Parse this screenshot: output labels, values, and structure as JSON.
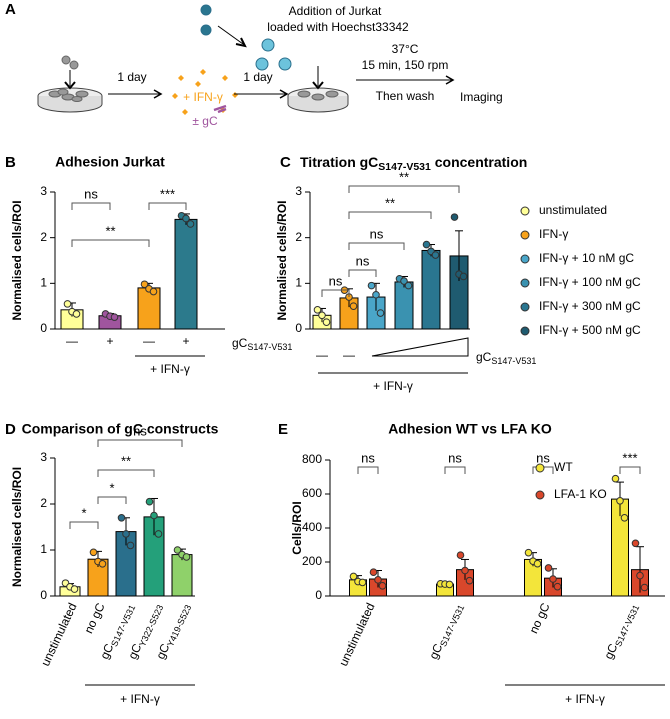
{
  "schematic": {
    "panel": "A",
    "jurkat": "Addition of Jurkat",
    "jurkat2": "loaded with Hoechst33342",
    "day1": "1 day",
    "ifn": "+ IFN-γ",
    "gc": "± gC",
    "day2": "1 day",
    "temp": "37°C",
    "cond": "15 min, 150 rpm",
    "wash": "Then wash",
    "imaging": "Imaging"
  },
  "chart_data": [
    {
      "panel": "B",
      "type": "bar",
      "title": "Adhesion Jurkat",
      "ylabel": "Normalised cells/ROI",
      "categories": [
        "—",
        "+",
        "—",
        "+"
      ],
      "values": [
        0.42,
        0.29,
        0.9,
        2.4
      ],
      "errors": [
        0.15,
        0.05,
        0.1,
        0.12
      ],
      "points": [
        [
          0.55,
          0.38,
          0.33
        ],
        [
          0.33,
          0.28,
          0.26
        ],
        [
          0.98,
          0.88,
          0.82
        ],
        [
          2.48,
          2.42,
          2.3
        ]
      ],
      "colors": [
        "#ffff99",
        "#a0559e",
        "#f7a21b",
        "#2c7a8c"
      ],
      "ylim": [
        0,
        3
      ],
      "yticks": [
        0,
        1,
        2,
        3
      ],
      "xlabel": {
        "main": "gC",
        "sub": "S147-V531"
      },
      "groups": [
        {
          "label": "+ IFN-γ",
          "categories": [
            2,
            3
          ]
        }
      ],
      "annotations": [
        {
          "from": 0,
          "to": 1,
          "label": "ns"
        },
        {
          "from": 2,
          "to": 3,
          "label": "***"
        },
        {
          "from": 0,
          "to": 2,
          "label": "**"
        }
      ]
    },
    {
      "panel": "C",
      "type": "bar",
      "title": {
        "main": "Titration gC",
        "sub": "S147-V531",
        "tail": " concentration"
      },
      "ylabel": "Normalised cells/ROI",
      "categories": [
        "—",
        "—",
        null,
        null,
        null,
        null
      ],
      "values": [
        0.3,
        0.68,
        0.7,
        1.03,
        1.72,
        1.6
      ],
      "errors": [
        0.15,
        0.2,
        0.3,
        0.12,
        0.13,
        0.55
      ],
      "points": [
        [
          0.42,
          0.3,
          0.15
        ],
        [
          0.85,
          0.7,
          0.5
        ],
        [
          0.95,
          0.75,
          0.35
        ],
        [
          1.1,
          1.05,
          0.95
        ],
        [
          1.85,
          1.7,
          1.62
        ],
        [
          2.45,
          1.2,
          1.15
        ]
      ],
      "colors": [
        "#ffff99",
        "#f7a21b",
        "#4aa6c9",
        "#3a92b0",
        "#2a7690",
        "#1f5b70"
      ],
      "names": [
        "unstimulated",
        "IFN-γ",
        "IFN-γ + 10 nM gC",
        "IFN-γ + 100 nM gC",
        "IFN-γ + 300 nM gC",
        "IFN-γ + 500 nM gC"
      ],
      "ylim": [
        0,
        3
      ],
      "yticks": [
        0,
        1,
        2,
        3
      ],
      "xlabel": {
        "main": "gC",
        "sub": "S147-V531"
      },
      "groups": [
        {
          "label": "+ IFN-γ",
          "categories": [
            1,
            5
          ]
        }
      ],
      "annotations": [
        {
          "from": 0,
          "to": 1,
          "label": "ns"
        },
        {
          "from": 1,
          "to": 2,
          "label": "ns"
        },
        {
          "from": 1,
          "to": 3,
          "label": "ns"
        },
        {
          "from": 1,
          "to": 4,
          "label": "**"
        },
        {
          "from": 1,
          "to": 5,
          "label": "**"
        }
      ]
    },
    {
      "panel": "D",
      "type": "bar",
      "title": "Comparison of gC constructs",
      "ylabel": "Normalised cells/ROI",
      "categories": [
        "unstimulated",
        "no gC",
        {
          "main": "gC",
          "sub": "S147-V531"
        },
        {
          "main": "gC",
          "sub": "Y322-S523"
        },
        {
          "main": "gC",
          "sub": "Y419-S523"
        }
      ],
      "values": [
        0.2,
        0.8,
        1.4,
        1.72,
        0.9
      ],
      "errors": [
        0.07,
        0.17,
        0.3,
        0.4,
        0.12
      ],
      "points": [
        [
          0.28,
          0.2,
          0.15
        ],
        [
          0.95,
          0.75,
          0.7
        ],
        [
          1.7,
          1.35,
          1.1
        ],
        [
          2.05,
          1.75,
          1.35
        ],
        [
          1.0,
          0.9,
          0.85
        ]
      ],
      "colors": [
        "#ffff99",
        "#f7a21b",
        "#2a6f8c",
        "#24a07a",
        "#8fd16a"
      ],
      "ylim": [
        0,
        3
      ],
      "yticks": [
        0,
        1,
        2,
        3
      ],
      "groups": [
        {
          "label": "+ IFN-γ",
          "categories": [
            1,
            4
          ]
        }
      ],
      "annotations": [
        {
          "from": 0,
          "to": 1,
          "label": "*"
        },
        {
          "from": 1,
          "to": 2,
          "label": "*"
        },
        {
          "from": 1,
          "to": 3,
          "label": "**"
        },
        {
          "from": 1,
          "to": 4,
          "label": "ns"
        }
      ]
    },
    {
      "panel": "E",
      "type": "grouped-bar",
      "title": "Adhesion WT vs LFA KO",
      "ylabel": "Cells/ROI",
      "categories": [
        "unstimulated",
        {
          "main": "gC",
          "sub": "S147-V531"
        },
        "no gC",
        {
          "main": "gC",
          "sub": "S147-V531"
        }
      ],
      "series": [
        {
          "name": "WT",
          "color": "#f3e53a",
          "values": [
            95,
            70,
            215,
            570
          ],
          "errors": [
            25,
            8,
            40,
            100
          ],
          "points": [
            [
              115,
              85,
              80
            ],
            [
              72,
              70,
              68
            ],
            [
              255,
              205,
              190
            ],
            [
              690,
              560,
              460
            ]
          ]
        },
        {
          "name": "LFA-1 KO",
          "color": "#d9472b",
          "values": [
            100,
            155,
            105,
            155
          ],
          "errors": [
            50,
            60,
            55,
            135
          ],
          "points": [
            [
              140,
              95,
              60
            ],
            [
              240,
              150,
              90
            ],
            [
              165,
              100,
              55
            ],
            [
              310,
              120,
              50
            ]
          ]
        }
      ],
      "ylim": [
        0,
        800
      ],
      "yticks": [
        0,
        200,
        400,
        600,
        800
      ],
      "groups": [
        {
          "label": "+ IFN-γ",
          "categories": [
            2,
            3
          ]
        }
      ],
      "annotations": [
        {
          "category": 0,
          "label": "ns"
        },
        {
          "category": 1,
          "label": "ns"
        },
        {
          "category": 2,
          "label": "ns"
        },
        {
          "category": 3,
          "label": "***"
        }
      ]
    }
  ]
}
